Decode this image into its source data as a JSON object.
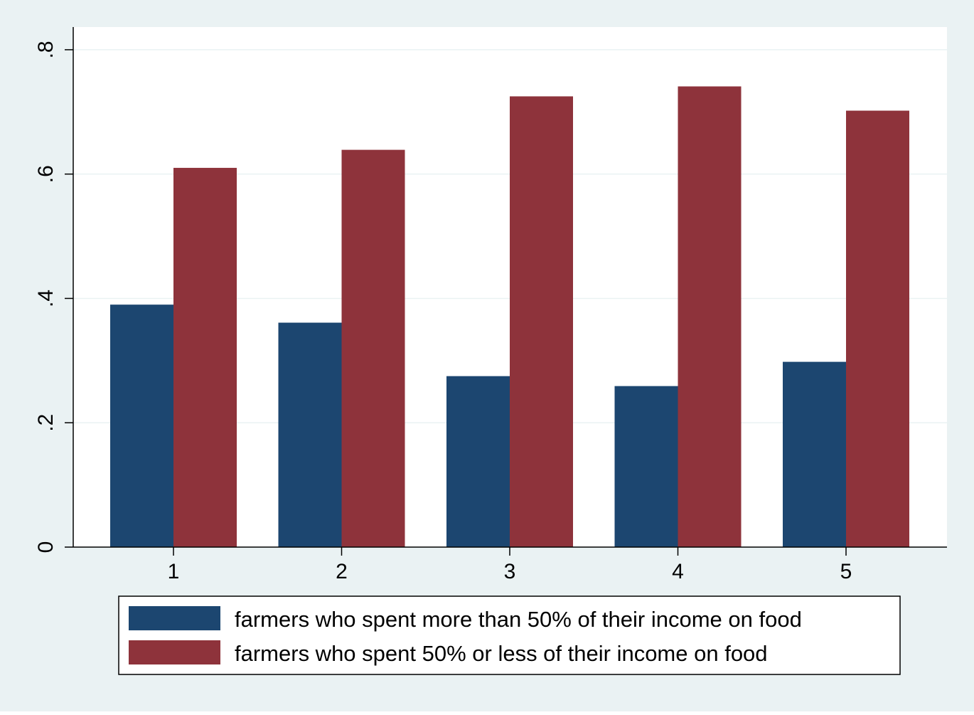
{
  "chart_data": {
    "type": "bar",
    "title": "",
    "xlabel": "",
    "ylabel": "",
    "categories": [
      "1",
      "2",
      "3",
      "4",
      "5"
    ],
    "series": [
      {
        "name": "farmers who spent more than 50% of their income on food",
        "color": "#1c4670",
        "values": [
          0.39,
          0.361,
          0.275,
          0.259,
          0.298
        ]
      },
      {
        "name": "farmers who spent 50% or less of their income on food",
        "color": "#8e333b",
        "values": [
          0.61,
          0.639,
          0.725,
          0.741,
          0.702
        ]
      }
    ],
    "ylim": [
      0,
      0.8365
    ],
    "yticks": [
      0,
      0.2,
      0.4,
      0.6,
      0.8
    ],
    "ytick_labels": [
      "0",
      ".2",
      ".4",
      ".6",
      ".8"
    ],
    "grid": true,
    "legend_position": "bottom",
    "colors": {
      "outer_background": "#eaf2f3",
      "plot_background": "#ffffff",
      "grid": "#eaf2f3",
      "axis": "#000000",
      "legend_border": "#000000"
    }
  }
}
